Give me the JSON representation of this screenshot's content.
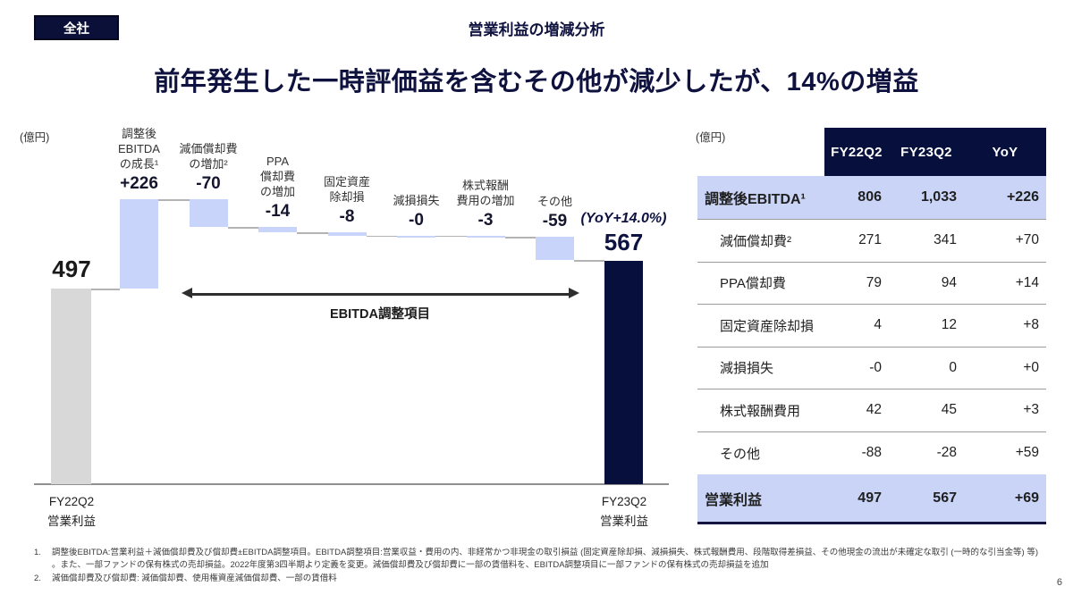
{
  "slide": {
    "badge": "全社",
    "title": "営業利益の増減分析",
    "headline": "前年発生した一時評価益を含むその他が減少したが、14%の増益",
    "page_number": "6"
  },
  "colors": {
    "navy": "#070f3d",
    "light_blue_bar": "#c9d4fa",
    "gray_bar": "#d8d8d8",
    "table_highlight": "#c9d4f7",
    "headline_text": "#0f123f"
  },
  "chart_data": {
    "type": "waterfall",
    "title": "営業利益の増減分析",
    "unit": "億円",
    "unit_label": "(億円)",
    "start": {
      "label_lines": [
        "FY22Q2",
        "営業利益"
      ],
      "value": 497,
      "display": "497"
    },
    "steps": [
      {
        "name_lines": [
          "調整後",
          "EBITDA",
          "の成長¹"
        ],
        "value": 226,
        "display": "+226"
      },
      {
        "name_lines": [
          "減価償却費",
          "の増加²"
        ],
        "value": -70,
        "display": "-70"
      },
      {
        "name_lines": [
          "PPA",
          "償却費",
          "の増加"
        ],
        "value": -14,
        "display": "-14"
      },
      {
        "name_lines": [
          "固定資産",
          "除却損"
        ],
        "value": -8,
        "display": "-8"
      },
      {
        "name_lines": [
          "減損損失"
        ],
        "value": 0,
        "display": "-0"
      },
      {
        "name_lines": [
          "株式報酬",
          "費用の増加"
        ],
        "value": -3,
        "display": "-3"
      },
      {
        "name_lines": [
          "その他"
        ],
        "value": -59,
        "display": "-59"
      }
    ],
    "end": {
      "label_lines": [
        "FY23Q2",
        "営業利益"
      ],
      "value": 567,
      "display": "567",
      "yoy_note": "(YoY+14.0%)"
    },
    "annotation_arrow": {
      "label": "EBITDA調整項目",
      "covers_steps": [
        1,
        6
      ]
    }
  },
  "table": {
    "unit_label": "(億円)",
    "columns": [
      "FY22Q2",
      "FY23Q2",
      "YoY"
    ],
    "rows": [
      {
        "label": "調整後EBITDA¹",
        "values": [
          "806",
          "1,033",
          "+226"
        ],
        "highlight": true,
        "bold": true,
        "indent": false
      },
      {
        "label": "減価償却費²",
        "values": [
          "271",
          "341",
          "+70"
        ],
        "highlight": false,
        "bold": false,
        "indent": true
      },
      {
        "label": "PPA償却費",
        "values": [
          "79",
          "94",
          "+14"
        ],
        "highlight": false,
        "bold": false,
        "indent": true
      },
      {
        "label": "固定資産除却損",
        "values": [
          "4",
          "12",
          "+8"
        ],
        "highlight": false,
        "bold": false,
        "indent": true
      },
      {
        "label": "減損損失",
        "values": [
          "-0",
          "0",
          "+0"
        ],
        "highlight": false,
        "bold": false,
        "indent": true
      },
      {
        "label": "株式報酬費用",
        "values": [
          "42",
          "45",
          "+3"
        ],
        "highlight": false,
        "bold": false,
        "indent": true
      },
      {
        "label": "その他",
        "values": [
          "-88",
          "-28",
          "+59"
        ],
        "highlight": false,
        "bold": false,
        "indent": true
      },
      {
        "label": "営業利益",
        "values": [
          "497",
          "567",
          "+69"
        ],
        "highlight": true,
        "bold": true,
        "indent": false
      }
    ]
  },
  "footnotes": [
    {
      "num": "1.",
      "text": "調整後EBITDA:営業利益＋減価償却費及び償却費±EBITDA調整項目。EBITDA調整項目:営業収益・費用の内、非経常かつ非現金の取引損益 (固定資産除却損、減損損失、株式報酬費用、段階取得差損益、その他現金の流出が未確定な取引 (一時的な引当金等) 等) 。また、一部ファンドの保有株式の売却損益。2022年度第3四半期より定義を変更。減価償却費及び償却費に一部の賃借料を、EBITDA調整項目に一部ファンドの保有株式の売却損益を追加"
    },
    {
      "num": "2.",
      "text": "減価償却費及び償却費: 減価償却費、使用権資産減価償却費、一部の賃借料"
    }
  ]
}
